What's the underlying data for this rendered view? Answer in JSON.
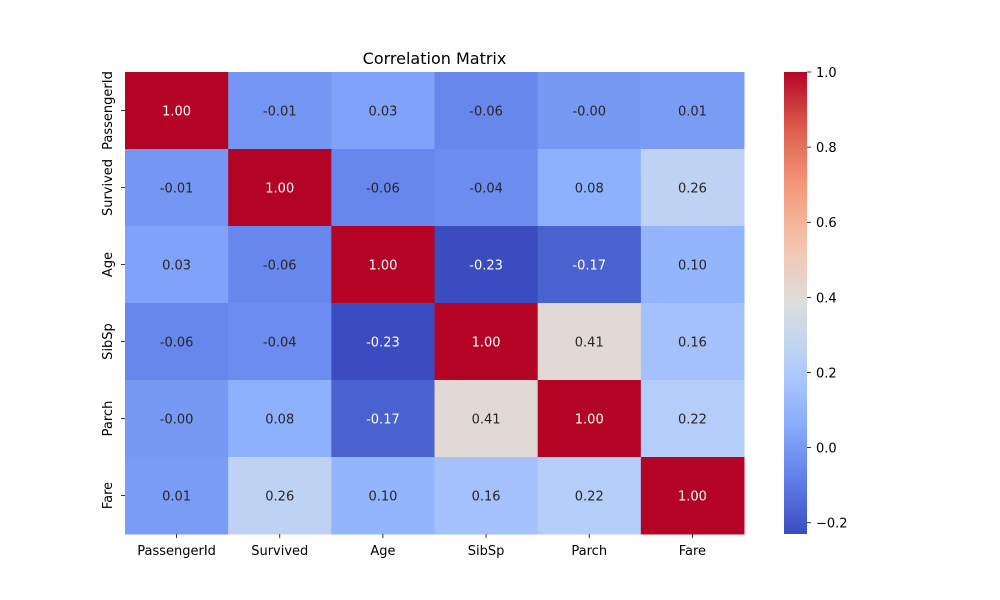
{
  "chart_data": {
    "type": "heatmap",
    "title": "Correlation Matrix",
    "xlabel": "",
    "ylabel": "",
    "x_categories": [
      "PassengerId",
      "Survived",
      "Age",
      "SibSp",
      "Parch",
      "Fare"
    ],
    "y_categories": [
      "PassengerId",
      "Survived",
      "Age",
      "SibSp",
      "Parch",
      "Fare"
    ],
    "values": [
      [
        1.0,
        -0.01,
        0.03,
        -0.06,
        -0.0,
        0.01
      ],
      [
        -0.01,
        1.0,
        -0.06,
        -0.04,
        0.08,
        0.26
      ],
      [
        0.03,
        -0.06,
        1.0,
        -0.23,
        -0.17,
        0.1
      ],
      [
        -0.06,
        -0.04,
        -0.23,
        1.0,
        0.41,
        0.16
      ],
      [
        -0.0,
        0.08,
        -0.17,
        0.41,
        1.0,
        0.22
      ],
      [
        0.01,
        0.26,
        0.1,
        0.16,
        0.22,
        1.0
      ]
    ],
    "cell_labels": [
      [
        "1.00",
        "-0.01",
        "0.03",
        "-0.06",
        "-0.00",
        "0.01"
      ],
      [
        "-0.01",
        "1.00",
        "-0.06",
        "-0.04",
        "0.08",
        "0.26"
      ],
      [
        "0.03",
        "-0.06",
        "1.00",
        "-0.23",
        "-0.17",
        "0.10"
      ],
      [
        "-0.06",
        "-0.04",
        "-0.23",
        "1.00",
        "0.41",
        "0.16"
      ],
      [
        "-0.00",
        "0.08",
        "-0.17",
        "0.41",
        "1.00",
        "0.22"
      ],
      [
        "0.01",
        "0.26",
        "0.10",
        "0.16",
        "0.22",
        "1.00"
      ]
    ],
    "colormap": "coolwarm",
    "vmin": -0.23,
    "vmax": 1.0,
    "colorbar": {
      "ticks": [
        -0.2,
        0.0,
        0.2,
        0.4,
        0.6,
        0.8,
        1.0
      ],
      "tick_labels": [
        "−0.2",
        "0.0",
        "0.2",
        "0.4",
        "0.6",
        "0.8",
        "1.0"
      ],
      "position": "right"
    },
    "grid": false
  }
}
